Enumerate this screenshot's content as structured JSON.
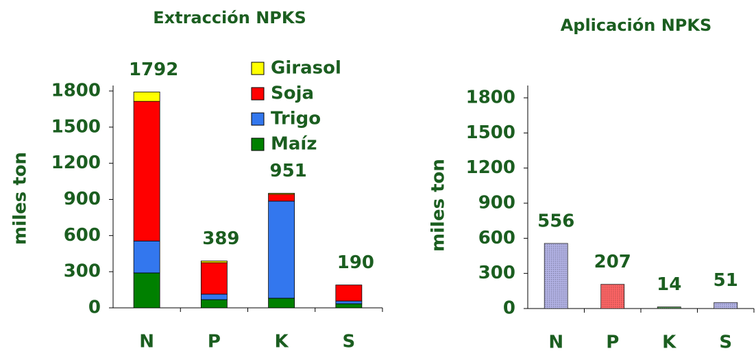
{
  "chart_data": [
    {
      "type": "stacked-bar",
      "title": "Extracción NPKS",
      "y_label": "miles ton",
      "categories": [
        "N",
        "P",
        "K",
        "S"
      ],
      "series": [
        {
          "name": "Maíz",
          "color": "#008000",
          "values": [
            290,
            68,
            80,
            34
          ]
        },
        {
          "name": "Trigo",
          "color": "#3377ee",
          "values": [
            265,
            46,
            806,
            23
          ]
        },
        {
          "name": "Soja",
          "color": "#ff0000",
          "values": [
            1159,
            261,
            57,
            133
          ]
        },
        {
          "name": "Girasol",
          "color": "#ffff00",
          "values": [
            78,
            14,
            8,
            0
          ]
        }
      ],
      "totals": [
        1792,
        389,
        951,
        190
      ],
      "ylim": [
        0,
        1800
      ],
      "yticks": [
        0,
        300,
        600,
        900,
        1200,
        1500,
        1800
      ]
    },
    {
      "type": "bar",
      "title": "Aplicación NPKS",
      "y_label": "miles ton",
      "categories": [
        "N",
        "P",
        "K",
        "S"
      ],
      "values": [
        556,
        207,
        14,
        51
      ],
      "colors": [
        "#9999dd",
        "#ff3333",
        "#1b6b1b",
        "#9999dd"
      ],
      "ylim": [
        0,
        1800
      ],
      "yticks": [
        0,
        300,
        600,
        900,
        1200,
        1500,
        1800
      ]
    }
  ]
}
